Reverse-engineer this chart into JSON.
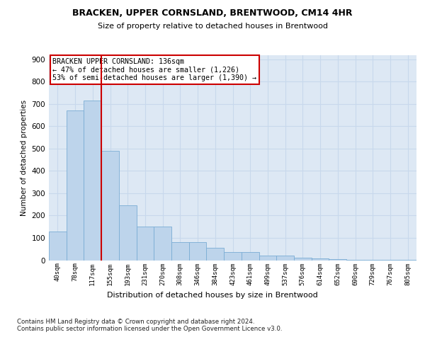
{
  "title1": "BRACKEN, UPPER CORNSLAND, BRENTWOOD, CM14 4HR",
  "title2": "Size of property relative to detached houses in Brentwood",
  "xlabel": "Distribution of detached houses by size in Brentwood",
  "ylabel": "Number of detached properties",
  "bar_labels": [
    "40sqm",
    "78sqm",
    "117sqm",
    "155sqm",
    "193sqm",
    "231sqm",
    "270sqm",
    "308sqm",
    "346sqm",
    "384sqm",
    "423sqm",
    "461sqm",
    "499sqm",
    "537sqm",
    "576sqm",
    "614sqm",
    "652sqm",
    "690sqm",
    "729sqm",
    "767sqm",
    "805sqm"
  ],
  "bar_heights": [
    130,
    670,
    715,
    490,
    245,
    150,
    150,
    80,
    80,
    55,
    35,
    35,
    20,
    20,
    10,
    8,
    5,
    3,
    3,
    3,
    3
  ],
  "bar_color": "#bdd4eb",
  "bar_edge_color": "#7aadd4",
  "grid_color": "#c8d8ec",
  "background_color": "#dde8f4",
  "vline_color": "#cc0000",
  "annotation_text": "BRACKEN UPPER CORNSLAND: 136sqm\n← 47% of detached houses are smaller (1,226)\n53% of semi-detached houses are larger (1,390) →",
  "annotation_box_color": "#ffffff",
  "annotation_edge_color": "#cc0000",
  "footer_text": "Contains HM Land Registry data © Crown copyright and database right 2024.\nContains public sector information licensed under the Open Government Licence v3.0.",
  "ylim": [
    0,
    920
  ],
  "yticks": [
    0,
    100,
    200,
    300,
    400,
    500,
    600,
    700,
    800,
    900
  ]
}
